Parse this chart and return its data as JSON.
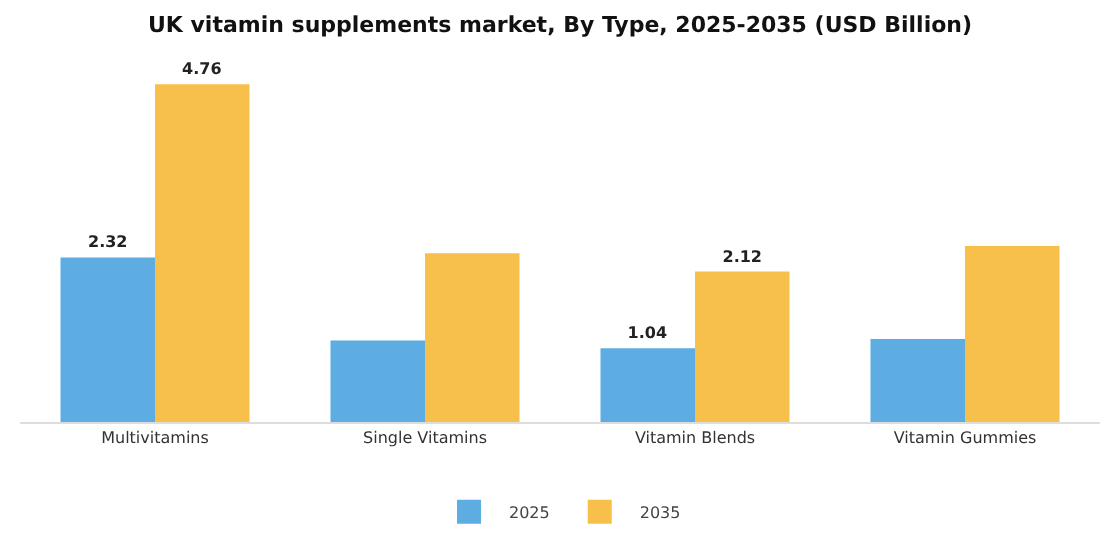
{
  "chart_data": {
    "type": "bar",
    "title": "UK vitamin supplements market, By Type, 2025-2035 (USD Billion)",
    "categories": [
      "Multivitamins",
      "Single Vitamins",
      "Vitamin Blends",
      "Vitamin Gummies"
    ],
    "series": [
      {
        "name": "2025",
        "color": "#5dade2",
        "values": [
          2.32,
          1.15,
          1.04,
          1.17
        ],
        "value_labels": [
          "2.32",
          null,
          "1.04",
          null
        ]
      },
      {
        "name": "2035",
        "color": "#f7c04a",
        "values": [
          4.76,
          2.38,
          2.12,
          2.48
        ],
        "value_labels": [
          "4.76",
          null,
          "2.12",
          null
        ]
      }
    ],
    "legend": "bottom"
  }
}
